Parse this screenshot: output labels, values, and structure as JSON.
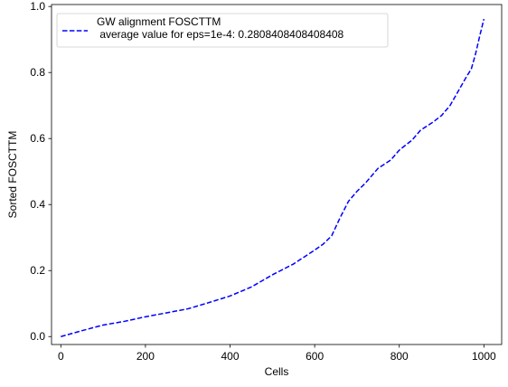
{
  "chart_data": {
    "type": "line",
    "title": "",
    "xlabel": "Cells",
    "ylabel": "Sorted FOSCTTM",
    "xlim": [
      -22,
      1042
    ],
    "ylim": [
      -0.024,
      1.006
    ],
    "xticks": [
      0,
      200,
      400,
      600,
      800,
      1000
    ],
    "yticks": [
      0.0,
      0.2,
      0.4,
      0.6,
      0.8,
      1.0
    ],
    "xtick_labels": [
      "0",
      "200",
      "400",
      "600",
      "800",
      "1000"
    ],
    "ytick_labels": [
      "0.0",
      "0.2",
      "0.4",
      "0.6",
      "0.8",
      "1.0"
    ],
    "grid": false,
    "legend_position": "top-left",
    "series": [
      {
        "name": "GW alignment FOSCTTM\n average value for eps=1e-4: 0.2808408408408408",
        "color": "#0000ff",
        "line_style": "dashed",
        "x": [
          0,
          50,
          100,
          150,
          200,
          250,
          300,
          350,
          400,
          450,
          500,
          550,
          600,
          620,
          640,
          660,
          680,
          700,
          720,
          750,
          780,
          800,
          830,
          850,
          880,
          900,
          920,
          940,
          960,
          970,
          980,
          990,
          1000
        ],
        "y": [
          0.0,
          0.018,
          0.035,
          0.046,
          0.06,
          0.072,
          0.084,
          0.103,
          0.123,
          0.15,
          0.187,
          0.22,
          0.262,
          0.28,
          0.305,
          0.36,
          0.41,
          0.44,
          0.465,
          0.51,
          0.535,
          0.565,
          0.595,
          0.625,
          0.65,
          0.67,
          0.7,
          0.745,
          0.79,
          0.81,
          0.855,
          0.91,
          0.962
        ]
      }
    ]
  }
}
